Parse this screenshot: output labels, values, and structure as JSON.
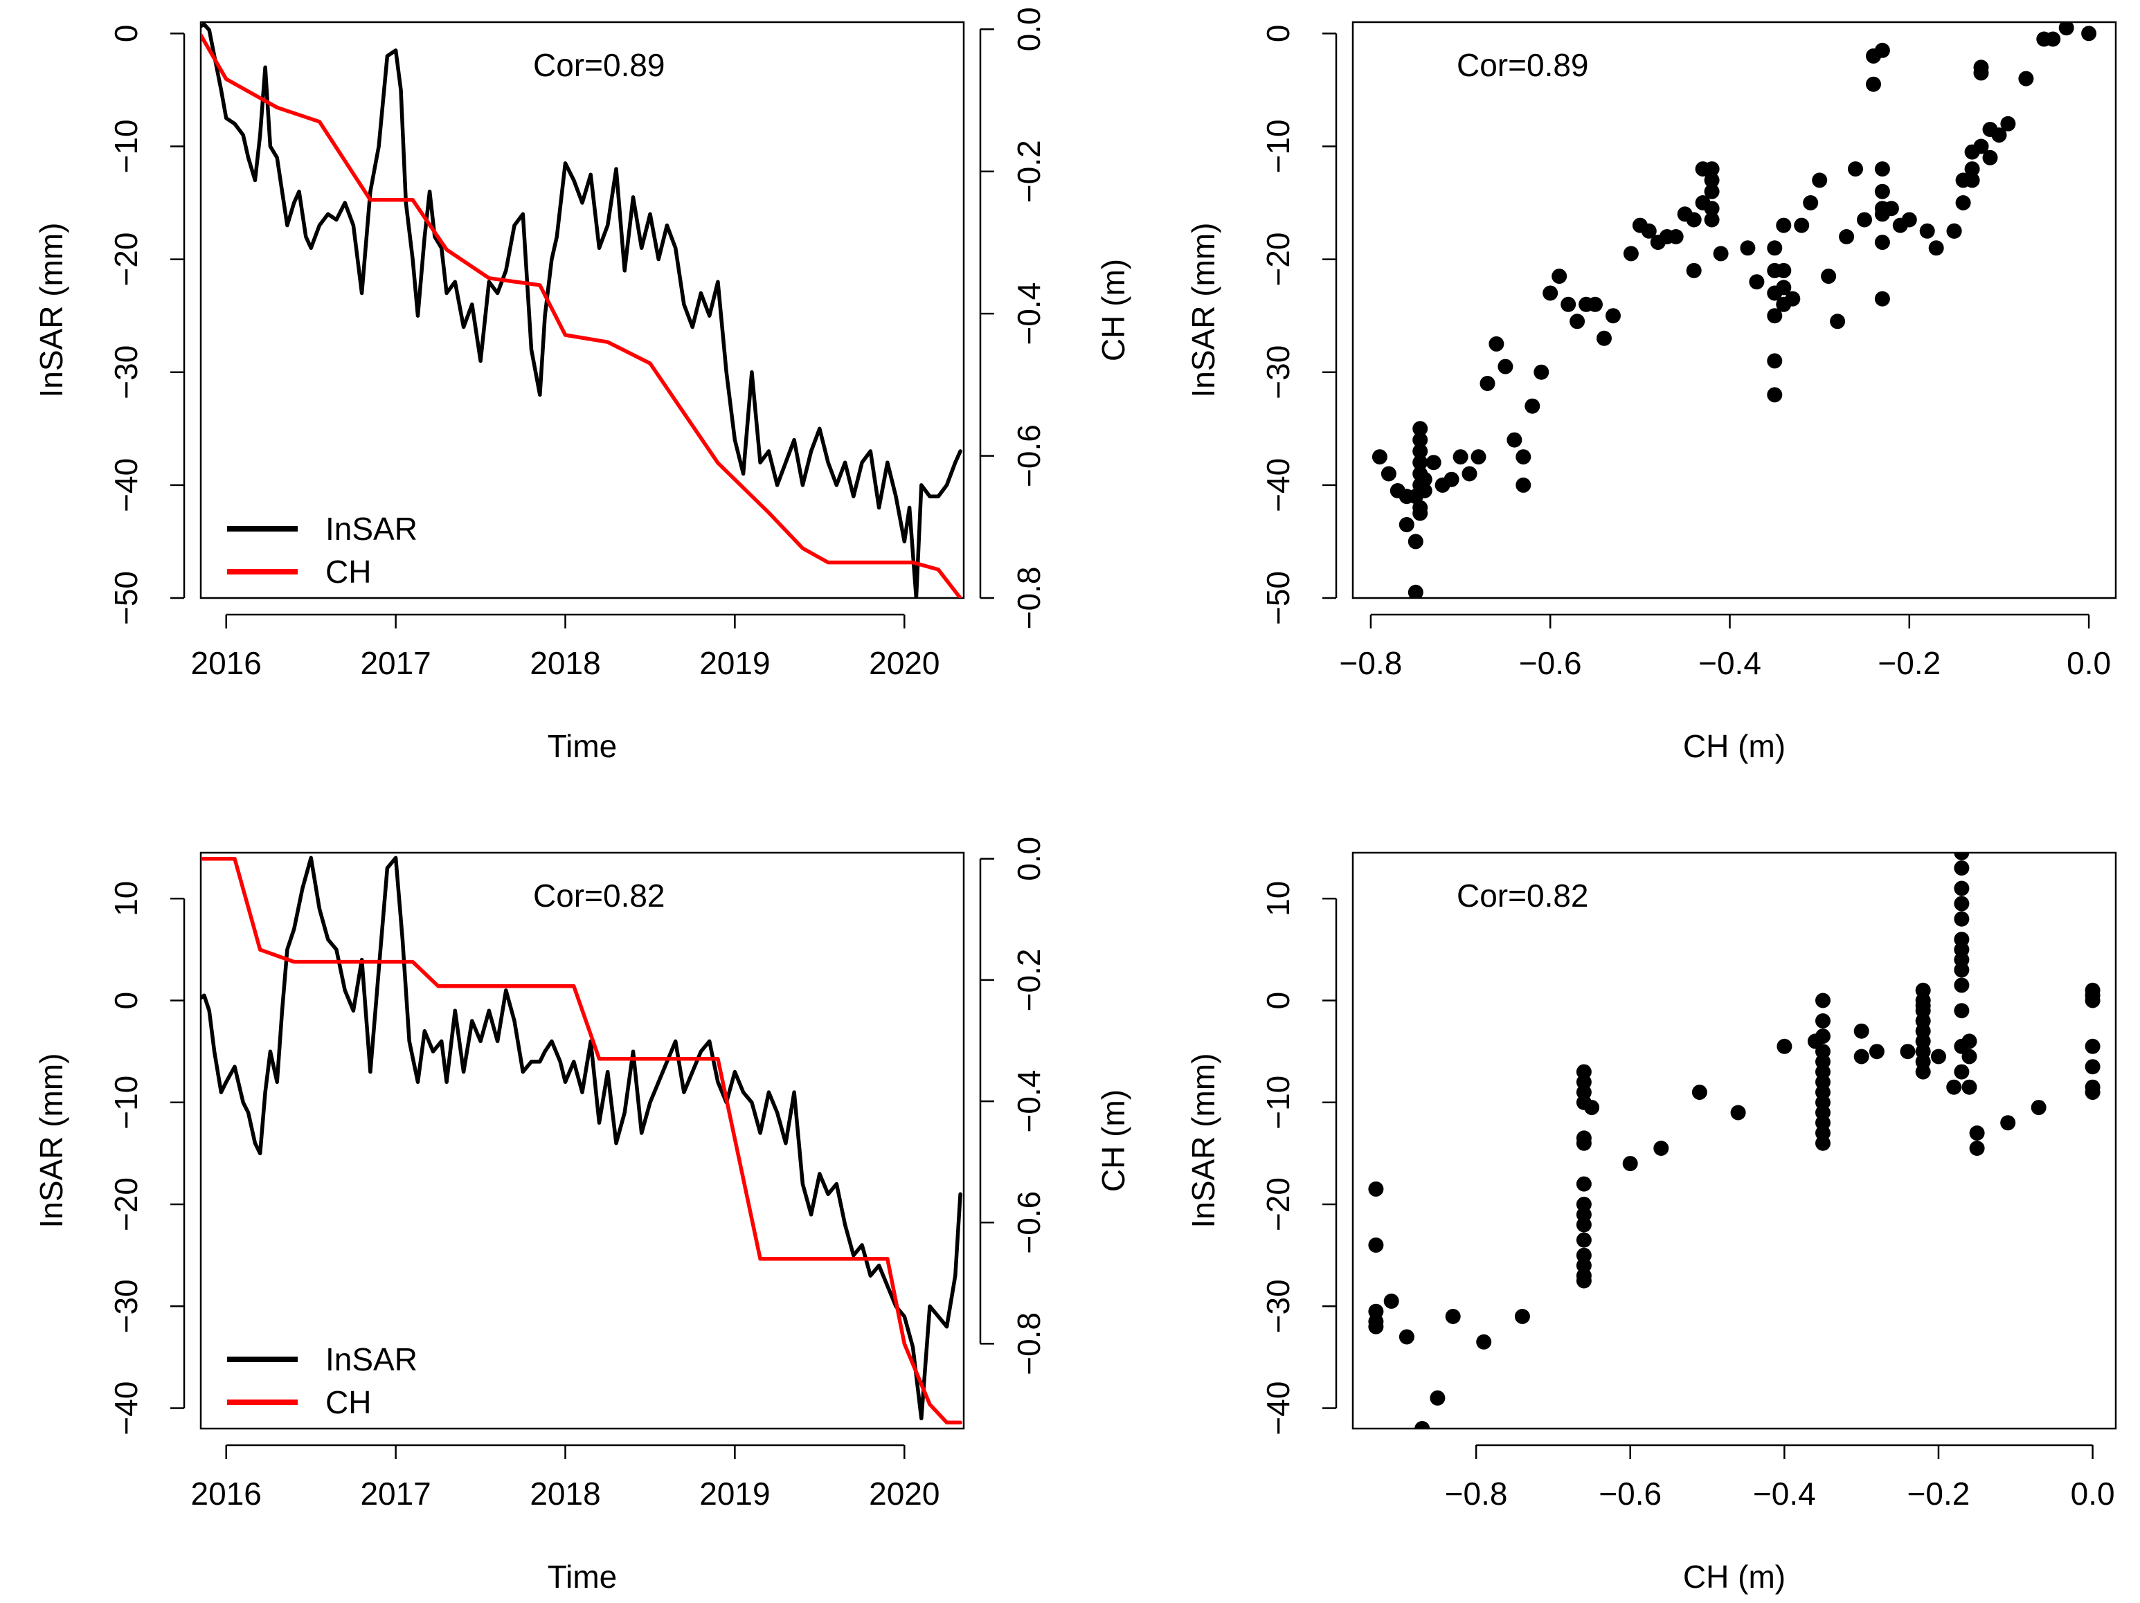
{
  "colors": {
    "insar": "#000000",
    "ch": "#ff0000",
    "point": "#000000"
  },
  "chart_data": [
    {
      "type": "line",
      "title": "",
      "annotation": "Cor=0.89",
      "xlabel": "Time",
      "ylabel": "InSAR (mm)",
      "y2label": "CH (m)",
      "xticks": [
        "2016",
        "2017",
        "2018",
        "2019",
        "2020"
      ],
      "yticks": [
        "-50",
        "-40",
        "-30",
        "-20",
        "-10",
        "0"
      ],
      "y2ticks": [
        "-0.8",
        "-0.6",
        "-0.4",
        "-0.2",
        "0.0"
      ],
      "xlim": [
        2015.85,
        2020.35
      ],
      "ylim": [
        -50,
        1
      ],
      "y2lim": [
        -0.8,
        0.01
      ],
      "legend": [
        "InSAR",
        "CH"
      ],
      "legend_position": "bottom-left",
      "series": [
        {
          "name": "InSAR",
          "axis": "left",
          "x": [
            2015.83,
            2015.87,
            2015.9,
            2015.93,
            2015.97,
            2016.0,
            2016.05,
            2016.1,
            2016.13,
            2016.17,
            2016.2,
            2016.23,
            2016.26,
            2016.3,
            2016.33,
            2016.36,
            2016.4,
            2016.43,
            2016.47,
            2016.5,
            2016.55,
            2016.6,
            2016.65,
            2016.7,
            2016.75,
            2016.8,
            2016.85,
            2016.9,
            2016.95,
            2017.0,
            2017.03,
            2017.06,
            2017.1,
            2017.13,
            2017.17,
            2017.2,
            2017.23,
            2017.27,
            2017.3,
            2017.35,
            2017.4,
            2017.45,
            2017.5,
            2017.55,
            2017.6,
            2017.65,
            2017.7,
            2017.75,
            2017.8,
            2017.85,
            2017.88,
            2017.92,
            2017.95,
            2018.0,
            2018.05,
            2018.1,
            2018.15,
            2018.2,
            2018.25,
            2018.3,
            2018.35,
            2018.4,
            2018.45,
            2018.5,
            2018.55,
            2018.6,
            2018.65,
            2018.7,
            2018.75,
            2018.8,
            2018.85,
            2018.9,
            2018.95,
            2019.0,
            2019.05,
            2019.1,
            2019.15,
            2019.2,
            2019.25,
            2019.3,
            2019.35,
            2019.4,
            2019.45,
            2019.5,
            2019.55,
            2019.6,
            2019.65,
            2019.7,
            2019.75,
            2019.8,
            2019.85,
            2019.9,
            2019.95,
            2020.0,
            2020.03,
            2020.07,
            2020.1,
            2020.15,
            2020.2,
            2020.25,
            2020.3,
            2020.33
          ],
          "y": [
            0.5,
            0.8,
            0.3,
            -2,
            -5,
            -7.5,
            -8,
            -9,
            -11,
            -13,
            -9,
            -3,
            -10,
            -11,
            -14,
            -17,
            -15,
            -14,
            -18,
            -19,
            -17,
            -16,
            -16.5,
            -15,
            -17,
            -23,
            -14,
            -10,
            -2,
            -1.5,
            -5,
            -15,
            -20,
            -25,
            -18,
            -14,
            -18,
            -19,
            -23,
            -22,
            -26,
            -24,
            -29,
            -22,
            -23,
            -21,
            -17,
            -16,
            -28,
            -32,
            -25,
            -20,
            -18,
            -11.5,
            -13,
            -15,
            -12.5,
            -19,
            -17,
            -12,
            -21,
            -14.5,
            -19,
            -16,
            -20,
            -17,
            -19,
            -24,
            -26,
            -23,
            -25,
            -22,
            -30,
            -36,
            -39,
            -30,
            -38,
            -37,
            -40,
            -38,
            -36,
            -40,
            -37,
            -35,
            -38,
            -40,
            -38,
            -41,
            -38,
            -37,
            -42,
            -38,
            -41,
            -45,
            -42,
            -50,
            -40,
            -41,
            -41,
            -40,
            -38,
            -37
          ]
        },
        {
          "name": "CH",
          "axis": "right",
          "x": [
            2015.83,
            2016.0,
            2016.3,
            2016.55,
            2016.85,
            2017.1,
            2017.3,
            2017.55,
            2017.85,
            2018.0,
            2018.25,
            2018.5,
            2018.9,
            2019.2,
            2019.4,
            2019.55,
            2019.8,
            2020.05,
            2020.2,
            2020.33
          ],
          "y": [
            0.0,
            -0.07,
            -0.11,
            -0.13,
            -0.24,
            -0.24,
            -0.31,
            -0.35,
            -0.36,
            -0.43,
            -0.44,
            -0.47,
            -0.61,
            -0.68,
            -0.73,
            -0.75,
            -0.75,
            -0.75,
            -0.76,
            -0.8
          ]
        }
      ]
    },
    {
      "type": "scatter",
      "title": "",
      "annotation": "Cor=0.89",
      "xlabel": "CH (m)",
      "ylabel": "InSAR (mm)",
      "xticks": [
        "-0.8",
        "-0.6",
        "-0.4",
        "-0.2",
        "0.0"
      ],
      "yticks": [
        "-50",
        "-40",
        "-30",
        "-20",
        "-10",
        "0"
      ],
      "xlim": [
        -0.82,
        0.03
      ],
      "ylim": [
        -50,
        1
      ],
      "series": [
        {
          "name": "InSAR vs CH",
          "x": [
            -0.79,
            -0.78,
            -0.77,
            -0.76,
            -0.76,
            -0.75,
            -0.75,
            -0.75,
            -0.745,
            -0.745,
            -0.745,
            -0.745,
            -0.745,
            -0.745,
            -0.745,
            -0.745,
            -0.74,
            -0.74,
            -0.73,
            -0.72,
            -0.71,
            -0.7,
            -0.69,
            -0.68,
            -0.67,
            -0.66,
            -0.65,
            -0.64,
            -0.63,
            -0.63,
            -0.62,
            -0.61,
            -0.6,
            -0.59,
            -0.58,
            -0.57,
            -0.56,
            -0.55,
            -0.54,
            -0.53,
            -0.51,
            -0.5,
            -0.49,
            -0.48,
            -0.47,
            -0.46,
            -0.45,
            -0.44,
            -0.44,
            -0.43,
            -0.43,
            -0.42,
            -0.42,
            -0.42,
            -0.42,
            -0.42,
            -0.41,
            -0.38,
            -0.37,
            -0.35,
            -0.35,
            -0.35,
            -0.35,
            -0.35,
            -0.35,
            -0.34,
            -0.34,
            -0.34,
            -0.34,
            -0.33,
            -0.32,
            -0.31,
            -0.3,
            -0.29,
            -0.28,
            -0.27,
            -0.26,
            -0.25,
            -0.24,
            -0.24,
            -0.23,
            -0.23,
            -0.23,
            -0.23,
            -0.23,
            -0.23,
            -0.23,
            -0.22,
            -0.21,
            -0.2,
            -0.18,
            -0.17,
            -0.15,
            -0.15,
            -0.14,
            -0.14,
            -0.13,
            -0.13,
            -0.13,
            -0.12,
            -0.12,
            -0.12,
            -0.11,
            -0.11,
            -0.1,
            -0.09,
            -0.07,
            -0.05,
            -0.04,
            -0.025,
            0.0
          ],
          "y": [
            -37.5,
            -39,
            -40.5,
            -41,
            -43.5,
            -41,
            -45,
            -49.5,
            -35,
            -36,
            -37,
            -38,
            -39,
            -40,
            -42,
            -42.5,
            -40.5,
            -39.5,
            -38,
            -40,
            -39.5,
            -37.5,
            -39,
            -37.5,
            -31,
            -27.5,
            -29.5,
            -36,
            -40,
            -37.5,
            -33,
            -30,
            -23,
            -21.5,
            -24,
            -25.5,
            -24,
            -24,
            -27,
            -25,
            -19.5,
            -17,
            -17.5,
            -18.5,
            -18,
            -18,
            -16,
            -16.5,
            -21,
            -15,
            -12,
            -12,
            -13,
            -14,
            -15.5,
            -16.5,
            -19.5,
            -19,
            -22,
            -32,
            -29,
            -25,
            -23,
            -21,
            -19,
            -17,
            -21,
            -22.5,
            -24,
            -23.5,
            -17,
            -15,
            -13,
            -21.5,
            -25.5,
            -18,
            -12,
            -16.5,
            -4.5,
            -2,
            -1.5,
            -12,
            -14,
            -15.5,
            -16,
            -18.5,
            -23.5,
            -15.5,
            -17,
            -16.5,
            -17.5,
            -19,
            -17.5,
            -17.5,
            -15,
            -13,
            -10.5,
            -12,
            -13,
            -3,
            -3.5,
            -10,
            -11,
            -8.5,
            -9,
            -8,
            -4,
            -0.5,
            -0.5,
            0.5,
            0.0
          ]
        }
      ]
    },
    {
      "type": "line",
      "title": "",
      "annotation": "Cor=0.82",
      "xlabel": "Time",
      "ylabel": "InSAR (mm)",
      "y2label": "CH (m)",
      "xticks": [
        "2016",
        "2017",
        "2018",
        "2019",
        "2020"
      ],
      "yticks": [
        "-40",
        "-30",
        "-20",
        "-10",
        "0",
        "10"
      ],
      "y2ticks": [
        "-0.8",
        "-0.6",
        "-0.4",
        "-0.2",
        "0.0"
      ],
      "xlim": [
        2015.85,
        2020.35
      ],
      "ylim": [
        -42,
        14.5
      ],
      "y2lim": [
        -0.94,
        0.01
      ],
      "legend": [
        "InSAR",
        "CH"
      ],
      "legend_position": "bottom-left",
      "series": [
        {
          "name": "InSAR",
          "axis": "left",
          "x": [
            2015.83,
            2015.87,
            2015.9,
            2015.93,
            2015.97,
            2016.0,
            2016.05,
            2016.1,
            2016.13,
            2016.17,
            2016.2,
            2016.23,
            2016.26,
            2016.3,
            2016.33,
            2016.36,
            2016.4,
            2016.45,
            2016.5,
            2016.55,
            2016.6,
            2016.65,
            2016.7,
            2016.75,
            2016.8,
            2016.85,
            2016.9,
            2016.95,
            2017.0,
            2017.04,
            2017.08,
            2017.13,
            2017.17,
            2017.22,
            2017.27,
            2017.3,
            2017.35,
            2017.4,
            2017.45,
            2017.5,
            2017.55,
            2017.6,
            2017.65,
            2017.7,
            2017.75,
            2017.8,
            2017.85,
            2017.88,
            2017.92,
            2017.97,
            2018.0,
            2018.05,
            2018.1,
            2018.15,
            2018.2,
            2018.25,
            2018.3,
            2018.35,
            2018.4,
            2018.45,
            2018.5,
            2018.55,
            2018.6,
            2018.65,
            2018.7,
            2018.75,
            2018.8,
            2018.85,
            2018.9,
            2018.95,
            2019.0,
            2019.05,
            2019.1,
            2019.15,
            2019.2,
            2019.25,
            2019.3,
            2019.35,
            2019.4,
            2019.45,
            2019.5,
            2019.55,
            2019.6,
            2019.65,
            2019.7,
            2019.75,
            2019.8,
            2019.85,
            2019.9,
            2019.95,
            2020.0,
            2020.05,
            2020.1,
            2020.15,
            2020.2,
            2020.25,
            2020.3,
            2020.33
          ],
          "y": [
            0,
            0.5,
            -1,
            -5,
            -9,
            -8,
            -6.5,
            -10,
            -11,
            -14,
            -15,
            -9,
            -5,
            -8,
            -1,
            5,
            7,
            11,
            14,
            9,
            6,
            5,
            1,
            -1,
            4,
            -7,
            3,
            13,
            14,
            6,
            -4,
            -8,
            -3,
            -5,
            -4,
            -8,
            -1,
            -7,
            -2,
            -4,
            -1,
            -4,
            1,
            -2,
            -7,
            -6,
            -6,
            -5,
            -4,
            -6,
            -8,
            -6,
            -9,
            -4,
            -12,
            -7,
            -14,
            -11,
            -5,
            -13,
            -10,
            -8,
            -6,
            -4,
            -9,
            -7,
            -5,
            -4,
            -8,
            -10,
            -7,
            -9,
            -10,
            -13,
            -9,
            -11,
            -14,
            -9,
            -18,
            -21,
            -17,
            -19,
            -18,
            -22,
            -25,
            -24,
            -27,
            -26,
            -28,
            -30,
            -31,
            -34,
            -41,
            -30,
            -31,
            -32,
            -27,
            -19
          ]
        },
        {
          "name": "CH",
          "axis": "right",
          "x": [
            2015.83,
            2016.05,
            2016.2,
            2016.3,
            2016.4,
            2017.1,
            2017.25,
            2017.5,
            2018.05,
            2018.2,
            2018.55,
            2018.9,
            2019.15,
            2019.5,
            2019.9,
            2020.0,
            2020.15,
            2020.25,
            2020.33
          ],
          "y": [
            0.0,
            0.0,
            -0.15,
            -0.16,
            -0.17,
            -0.17,
            -0.21,
            -0.21,
            -0.21,
            -0.33,
            -0.33,
            -0.33,
            -0.66,
            -0.66,
            -0.66,
            -0.8,
            -0.9,
            -0.93,
            -0.93
          ]
        }
      ]
    },
    {
      "type": "scatter",
      "title": "",
      "annotation": "Cor=0.82",
      "xlabel": "CH (m)",
      "ylabel": "InSAR (mm)",
      "xticks": [
        "-0.8",
        "-0.6",
        "-0.4",
        "-0.2",
        "0.0"
      ],
      "yticks": [
        "-40",
        "-30",
        "-20",
        "-10",
        "0",
        "10"
      ],
      "xlim": [
        -0.96,
        0.03
      ],
      "ylim": [
        -42,
        14.5
      ],
      "series": [
        {
          "name": "InSAR vs CH",
          "x": [
            -0.93,
            -0.93,
            -0.93,
            -0.93,
            -0.93,
            -0.91,
            -0.89,
            -0.87,
            -0.85,
            -0.83,
            -0.79,
            -0.74,
            -0.66,
            -0.66,
            -0.66,
            -0.66,
            -0.66,
            -0.66,
            -0.66,
            -0.66,
            -0.66,
            -0.66,
            -0.66,
            -0.66,
            -0.66,
            -0.66,
            -0.66,
            -0.65,
            -0.6,
            -0.56,
            -0.51,
            -0.46,
            -0.4,
            -0.36,
            -0.35,
            -0.35,
            -0.35,
            -0.35,
            -0.35,
            -0.35,
            -0.35,
            -0.35,
            -0.35,
            -0.35,
            -0.35,
            -0.35,
            -0.35,
            -0.3,
            -0.3,
            -0.28,
            -0.24,
            -0.22,
            -0.22,
            -0.22,
            -0.22,
            -0.22,
            -0.22,
            -0.22,
            -0.22,
            -0.22,
            -0.22,
            -0.2,
            -0.18,
            -0.17,
            -0.17,
            -0.17,
            -0.17,
            -0.17,
            -0.17,
            -0.17,
            -0.17,
            -0.17,
            -0.17,
            -0.17,
            -0.17,
            -0.17,
            -0.16,
            -0.16,
            -0.16,
            -0.15,
            -0.15,
            -0.11,
            -0.07,
            0.0,
            0.0,
            0.0,
            0.0,
            0.0,
            0.0,
            0.0
          ],
          "y": [
            -18.5,
            -24,
            -30.5,
            -31.5,
            -32,
            -29.5,
            -33,
            -42,
            -39,
            -31,
            -33.5,
            -31,
            -7,
            -8,
            -9,
            -10,
            -13.5,
            -14,
            -18,
            -20,
            -21,
            -22,
            -23.5,
            -25,
            -26,
            -27,
            -27.5,
            -10.5,
            -16,
            -14.5,
            -9,
            -11,
            -4.5,
            -4,
            0,
            -2,
            -3.5,
            -5,
            -6,
            -7,
            -8,
            -9,
            -10,
            -11,
            -12,
            -13,
            -14,
            -3,
            -5.5,
            -5,
            -5,
            -0.5,
            1,
            0,
            -1,
            -2,
            -3,
            -4,
            -5,
            -6,
            -7,
            -5.5,
            -8.5,
            14.5,
            13,
            11,
            9.5,
            8,
            6,
            5,
            4,
            3,
            1.5,
            -1,
            -4.5,
            -7,
            -4,
            -5.5,
            -8.5,
            -13,
            -14.5,
            -12,
            -10.5,
            1,
            0.5,
            0,
            -4.5,
            -6.5,
            -8.5,
            -9
          ]
        }
      ]
    }
  ]
}
